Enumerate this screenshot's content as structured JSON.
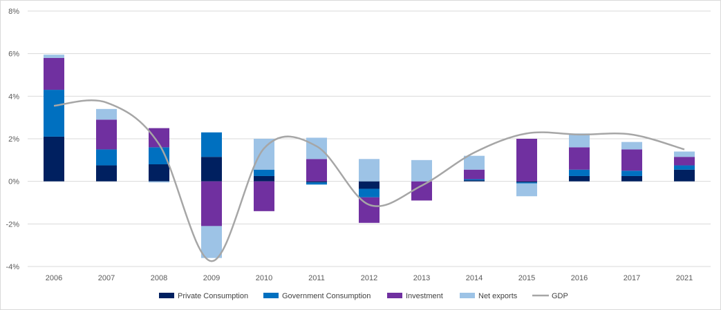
{
  "chart_data": {
    "type": "bar",
    "stacked": true,
    "categories": [
      "2006",
      "2007",
      "2008",
      "2009",
      "2010",
      "2011",
      "2012",
      "2013",
      "2014",
      "2015",
      "2016",
      "2017",
      "2021"
    ],
    "ylim": [
      -4,
      8
    ],
    "yticks": [
      -4,
      -2,
      0,
      2,
      4,
      6,
      8
    ],
    "ytick_labels": [
      "-4%",
      "-2%",
      "0%",
      "2%",
      "4%",
      "6%",
      "8%"
    ],
    "grid": true,
    "legend_position": "bottom",
    "series": [
      {
        "name": "Private Consumption",
        "color": "#002060",
        "values": [
          2.1,
          0.75,
          0.8,
          1.15,
          0.25,
          -0.05,
          -0.35,
          0.0,
          0.05,
          -0.05,
          0.25,
          0.25,
          0.55
        ]
      },
      {
        "name": "Government Consumption",
        "color": "#0070c0",
        "values": [
          2.2,
          0.75,
          0.8,
          1.15,
          0.3,
          -0.1,
          -0.4,
          0.0,
          0.05,
          -0.05,
          0.3,
          0.25,
          0.2
        ]
      },
      {
        "name": "Investment",
        "color": "#7030a0",
        "values": [
          1.5,
          1.4,
          0.9,
          -2.1,
          -1.4,
          1.05,
          -1.2,
          -0.9,
          0.45,
          2.0,
          1.05,
          1.0,
          0.4
        ]
      },
      {
        "name": "Net exports",
        "color": "#9dc3e6",
        "values": [
          0.15,
          0.5,
          -0.05,
          -1.5,
          1.45,
          1.0,
          1.05,
          1.0,
          0.65,
          -0.6,
          0.65,
          0.35,
          0.25
        ]
      }
    ],
    "line_series": {
      "name": "GDP",
      "color": "#a6a6a6",
      "values": [
        3.55,
        3.7,
        1.75,
        -3.75,
        1.55,
        1.65,
        -1.1,
        -0.2,
        1.35,
        2.25,
        2.2,
        2.2,
        1.5
      ]
    }
  }
}
